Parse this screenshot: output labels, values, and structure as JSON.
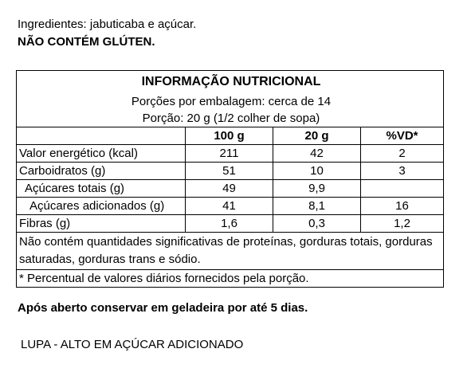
{
  "ingredients": "Ingredientes: jabuticaba e açúcar.",
  "gluten": "NÃO CONTÉM GLÚTEN.",
  "table": {
    "title": "INFORMAÇÃO NUTRICIONAL",
    "servings_per_package": "Porções por embalagem: cerca de 14",
    "serving_size": "Porção: 20 g (1/2 colher de sopa)",
    "headers": [
      "",
      "100 g",
      "20 g",
      "%VD*"
    ],
    "rows": [
      {
        "name": "Valor energético (kcal)",
        "v100": "211",
        "v20": "42",
        "vd": "2"
      },
      {
        "name": "Carboidratos (g)",
        "v100": "51",
        "v20": "10",
        "vd": "3"
      },
      {
        "name": "Açúcares totais (g)",
        "v100": "49",
        "v20": "9,9",
        "vd": ""
      },
      {
        "name": "Açúcares adicionados (g)",
        "v100": "41",
        "v20": "8,1",
        "vd": "16"
      },
      {
        "name": "Fibras (g)",
        "v100": "1,6",
        "v20": "0,3",
        "vd": "1,2"
      }
    ],
    "note": "Não contém quantidades significativas de proteínas, gorduras totais, gorduras saturadas, gorduras trans e sódio.",
    "footnote": "* Percentual de valores diários fornecidos pela porção."
  },
  "storage": "Após aberto conservar em geladeira por até 5 dias.",
  "warning": "LUPA - ALTO EM AÇÚCAR ADICIONADO"
}
